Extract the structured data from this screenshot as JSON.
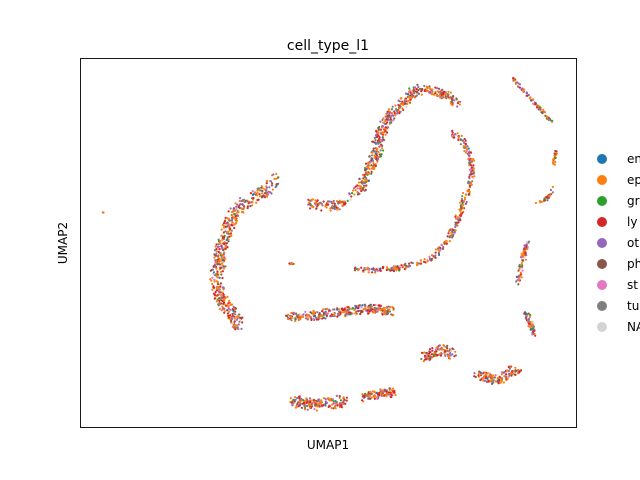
{
  "chart_data": {
    "type": "scatter",
    "title": "cell_type_l1",
    "xlabel": "UMAP1",
    "ylabel": "UMAP2",
    "xlim": [
      0,
      100
    ],
    "ylim": [
      0,
      100
    ],
    "grid": false,
    "ticks": false,
    "legend_placement": "right-outside",
    "categories": [
      {
        "label": "en",
        "color": "#1f77b4"
      },
      {
        "label": "ep",
        "color": "#ff7f0e"
      },
      {
        "label": "gr",
        "color": "#2ca02c"
      },
      {
        "label": "ly",
        "color": "#d62728"
      },
      {
        "label": "ot",
        "color": "#9467bd"
      },
      {
        "label": "ph",
        "color": "#8c564b"
      },
      {
        "label": "st",
        "color": "#e377c2"
      },
      {
        "label": "tu",
        "color": "#7f7f7f"
      },
      {
        "label": "NA",
        "color": "#d3d3d3"
      }
    ],
    "category_weights": [
      3,
      34,
      4,
      22,
      12,
      9,
      5,
      9,
      2
    ],
    "clusters": [
      {
        "name": "left-arc",
        "path": [
          [
            40,
            68
          ],
          [
            37,
            64
          ],
          [
            33,
            61
          ],
          [
            31,
            58
          ],
          [
            30,
            55
          ],
          [
            29,
            51
          ],
          [
            28,
            47
          ],
          [
            28,
            44
          ],
          [
            27,
            40
          ],
          [
            28,
            36
          ],
          [
            29,
            33
          ],
          [
            31,
            30
          ],
          [
            32,
            27
          ]
        ],
        "width": 1.4,
        "count": 520
      },
      {
        "name": "small-blob-center",
        "path": [
          [
            46,
            61
          ],
          [
            48,
            60
          ],
          [
            51,
            60
          ],
          [
            53,
            61
          ]
        ],
        "width": 1.1,
        "count": 90
      },
      {
        "name": "heart-left-lobe",
        "path": [
          [
            55,
            63
          ],
          [
            57,
            66
          ],
          [
            58,
            69
          ],
          [
            59,
            72
          ],
          [
            60,
            75
          ],
          [
            60,
            78
          ],
          [
            61,
            81
          ],
          [
            62,
            84
          ],
          [
            64,
            87
          ],
          [
            66,
            89
          ],
          [
            67,
            91
          ],
          [
            69,
            92
          ]
        ],
        "width": 1.2,
        "count": 380
      },
      {
        "name": "heart-top-right",
        "path": [
          [
            69,
            92
          ],
          [
            72,
            91
          ],
          [
            74,
            90
          ],
          [
            76,
            88
          ]
        ],
        "width": 1.0,
        "count": 100
      },
      {
        "name": "heart-right-lobe",
        "path": [
          [
            75,
            80
          ],
          [
            77,
            78
          ],
          [
            78,
            75
          ],
          [
            79,
            72
          ],
          [
            79,
            68
          ],
          [
            78,
            64
          ],
          [
            77,
            60
          ],
          [
            76,
            56
          ],
          [
            75,
            53
          ],
          [
            73,
            49
          ],
          [
            71,
            46
          ]
        ],
        "width": 0.7,
        "count": 230
      },
      {
        "name": "heart-bottom-line",
        "path": [
          [
            71,
            46
          ],
          [
            67,
            44
          ],
          [
            63,
            43
          ],
          [
            59,
            42.5
          ],
          [
            55,
            43
          ]
        ],
        "width": 0.6,
        "count": 110
      },
      {
        "name": "middle-strip",
        "path": [
          [
            42,
            30
          ],
          [
            45,
            30
          ],
          [
            48,
            30.5
          ],
          [
            51,
            31
          ],
          [
            54,
            31.5
          ],
          [
            57,
            32
          ],
          [
            60,
            32
          ],
          [
            63,
            31.5
          ]
        ],
        "width": 1.0,
        "count": 300
      },
      {
        "name": "mid-right-blob",
        "path": [
          [
            69,
            19
          ],
          [
            71,
            20
          ],
          [
            73,
            21
          ],
          [
            75,
            20
          ]
        ],
        "width": 1.2,
        "count": 110
      },
      {
        "name": "bottom-left-blob",
        "path": [
          [
            43,
            7
          ],
          [
            45,
            6.5
          ],
          [
            47,
            6
          ],
          [
            50,
            6.5
          ],
          [
            53,
            7
          ]
        ],
        "width": 1.3,
        "count": 190
      },
      {
        "name": "bottom-mid-blob",
        "path": [
          [
            57,
            8
          ],
          [
            59,
            8.5
          ],
          [
            61,
            9
          ],
          [
            63,
            9.5
          ]
        ],
        "width": 1.1,
        "count": 110
      },
      {
        "name": "bottom-right-blob",
        "path": [
          [
            80,
            14
          ],
          [
            82,
            13.5
          ],
          [
            84,
            13
          ],
          [
            86,
            14
          ],
          [
            88,
            16
          ]
        ],
        "width": 1.2,
        "count": 140
      },
      {
        "name": "top-right-diagonal",
        "path": [
          [
            87,
            95
          ],
          [
            89,
            92
          ],
          [
            91,
            89
          ],
          [
            93,
            86
          ],
          [
            95,
            83
          ]
        ],
        "width": 0.4,
        "count": 70
      },
      {
        "name": "right-small-top",
        "path": [
          [
            95.5,
            71
          ],
          [
            95.8,
            73
          ],
          [
            96,
            75
          ]
        ],
        "width": 0.4,
        "count": 25
      },
      {
        "name": "right-small-mid",
        "path": [
          [
            92,
            61
          ],
          [
            94,
            62
          ],
          [
            95,
            63
          ],
          [
            95.5,
            65
          ]
        ],
        "width": 0.4,
        "count": 35
      },
      {
        "name": "right-vertical",
        "path": [
          [
            88,
            39
          ],
          [
            89,
            43
          ],
          [
            89.5,
            47
          ],
          [
            90,
            50
          ]
        ],
        "width": 0.6,
        "count": 80
      },
      {
        "name": "right-lower-blob",
        "path": [
          [
            90,
            31
          ],
          [
            90.5,
            29
          ],
          [
            91,
            27
          ],
          [
            91.5,
            25
          ]
        ],
        "width": 0.6,
        "count": 60
      },
      {
        "name": "far-left-point",
        "path": [
          [
            4.5,
            58.3
          ]
        ],
        "width": 0.1,
        "count": 3
      },
      {
        "name": "small-dash",
        "path": [
          [
            42,
            44.5
          ],
          [
            43,
            44.5
          ]
        ],
        "width": 0.2,
        "count": 8
      },
      {
        "name": "small-right-of-strip",
        "path": [
          [
            60,
            32
          ],
          [
            62,
            31
          ]
        ],
        "width": 0.5,
        "count": 20
      }
    ]
  }
}
